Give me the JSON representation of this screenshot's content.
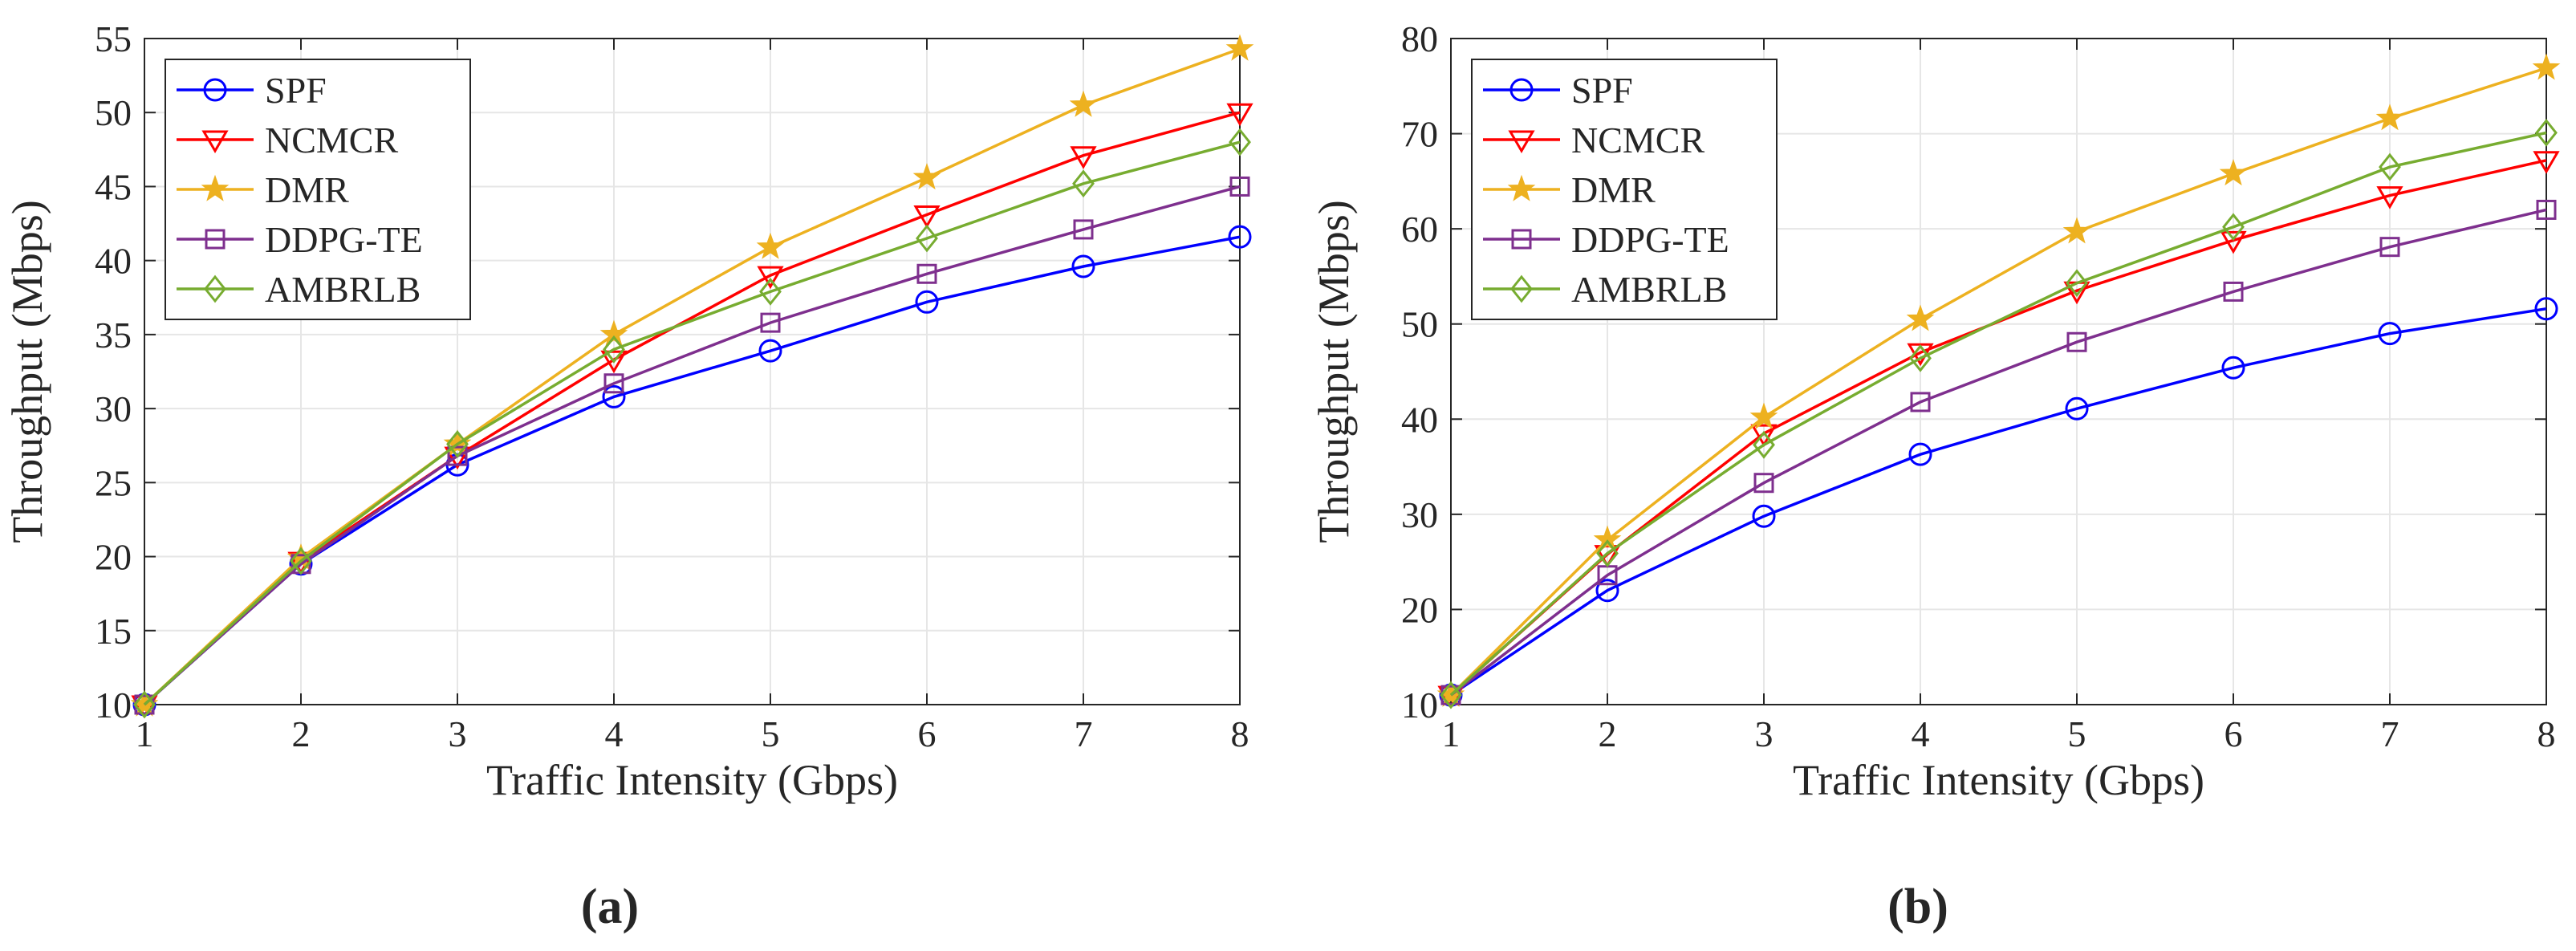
{
  "chart_data": [
    {
      "type": "line",
      "panel_label": "(a)",
      "xlabel": "Traffic Intensity (Gbps)",
      "ylabel": "Throughput (Mbps)",
      "xlim": [
        1,
        8
      ],
      "ylim": [
        10,
        55
      ],
      "xticks": [
        1,
        2,
        3,
        4,
        5,
        6,
        7,
        8
      ],
      "yticks": [
        10,
        15,
        20,
        25,
        30,
        35,
        40,
        45,
        50,
        55
      ],
      "grid": true,
      "legend_position": "top-left",
      "x": [
        1,
        2,
        3,
        4,
        5,
        6,
        7,
        8
      ],
      "series": [
        {
          "name": "SPF",
          "color": "#0000ff",
          "marker": "circle",
          "values": [
            10.0,
            19.5,
            26.2,
            30.8,
            33.9,
            37.2,
            39.6,
            41.6
          ]
        },
        {
          "name": "NCMCR",
          "color": "#ff0000",
          "marker": "triangle-down",
          "values": [
            10.0,
            19.7,
            26.8,
            33.3,
            39.0,
            43.1,
            47.1,
            50.0
          ]
        },
        {
          "name": "DMR",
          "color": "#edb120",
          "marker": "star",
          "values": [
            10.0,
            19.9,
            27.6,
            35.0,
            40.9,
            45.6,
            50.5,
            54.3
          ]
        },
        {
          "name": "DDPG-TE",
          "color": "#7e2f8e",
          "marker": "square",
          "values": [
            10.0,
            19.5,
            26.8,
            31.7,
            35.8,
            39.1,
            42.1,
            45.0
          ]
        },
        {
          "name": "AMBRLB",
          "color": "#77ac30",
          "marker": "diamond",
          "values": [
            10.0,
            19.7,
            27.6,
            34.0,
            37.9,
            41.5,
            45.2,
            48.0
          ]
        }
      ]
    },
    {
      "type": "line",
      "panel_label": "(b)",
      "xlabel": "Traffic Intensity (Gbps)",
      "ylabel": "Throughput (Mbps)",
      "xlim": [
        1,
        8
      ],
      "ylim": [
        10,
        80
      ],
      "xticks": [
        1,
        2,
        3,
        4,
        5,
        6,
        7,
        8
      ],
      "yticks": [
        10,
        20,
        30,
        40,
        50,
        60,
        70,
        80
      ],
      "grid": true,
      "legend_position": "top-left",
      "x": [
        1,
        2,
        3,
        4,
        5,
        6,
        7,
        8
      ],
      "series": [
        {
          "name": "SPF",
          "color": "#0000ff",
          "marker": "circle",
          "values": [
            11.0,
            22.0,
            29.8,
            36.3,
            41.1,
            45.4,
            49.0,
            51.6
          ]
        },
        {
          "name": "NCMCR",
          "color": "#ff0000",
          "marker": "triangle-down",
          "values": [
            11.0,
            25.8,
            38.5,
            47.0,
            53.5,
            58.8,
            63.5,
            67.2
          ]
        },
        {
          "name": "DMR",
          "color": "#edb120",
          "marker": "star",
          "values": [
            11.0,
            27.3,
            40.2,
            50.5,
            59.7,
            65.8,
            71.6,
            76.9
          ]
        },
        {
          "name": "DDPG-TE",
          "color": "#7e2f8e",
          "marker": "square",
          "values": [
            11.0,
            23.6,
            33.3,
            41.8,
            48.1,
            53.4,
            58.1,
            62.0
          ]
        },
        {
          "name": "AMBRLB",
          "color": "#77ac30",
          "marker": "diamond",
          "values": [
            11.0,
            25.9,
            37.3,
            46.4,
            54.3,
            60.2,
            66.5,
            70.1
          ]
        }
      ]
    }
  ]
}
